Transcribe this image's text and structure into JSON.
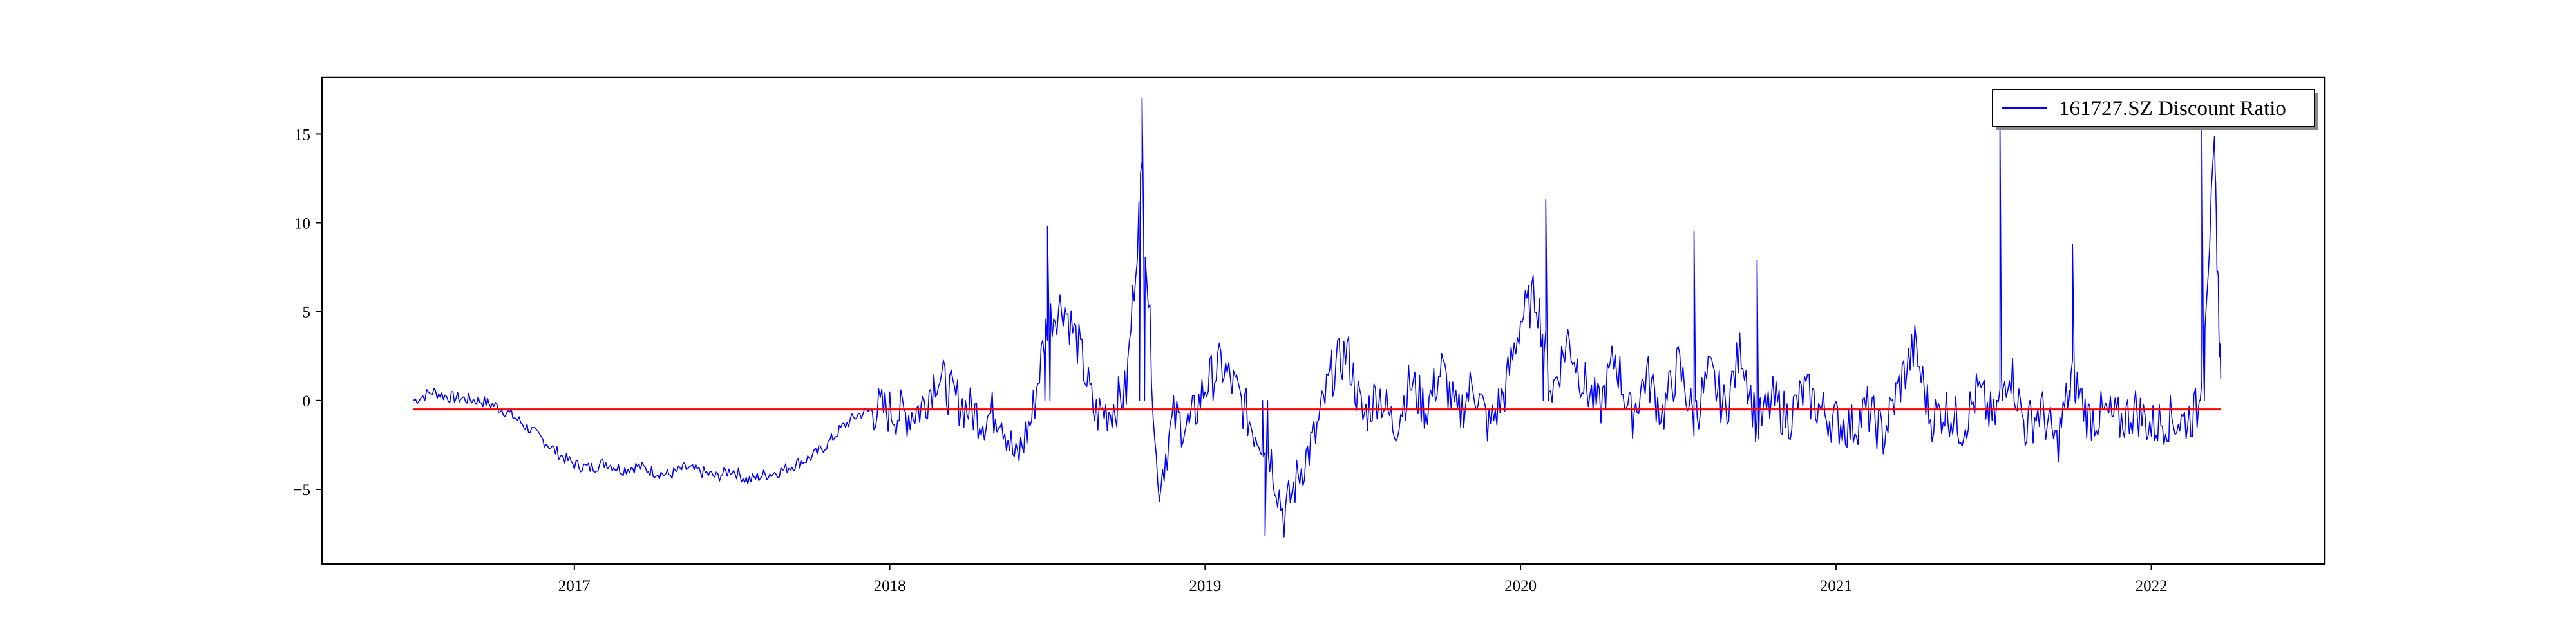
{
  "chart_data": {
    "type": "line",
    "title": "",
    "xlabel": "",
    "ylabel": "",
    "xlim": [
      2016.2,
      2022.55
    ],
    "ylim": [
      -9.2,
      18.2
    ],
    "grid": false,
    "legend_position": "top-right",
    "x_ticks": [
      {
        "value": 2017,
        "label": "2017"
      },
      {
        "value": 2018,
        "label": "2018"
      },
      {
        "value": 2019,
        "label": "2019"
      },
      {
        "value": 2020,
        "label": "2020"
      },
      {
        "value": 2021,
        "label": "2021"
      },
      {
        "value": 2022,
        "label": "2022"
      }
    ],
    "y_ticks": [
      {
        "value": -5,
        "label": "−5"
      },
      {
        "value": 0,
        "label": "0"
      },
      {
        "value": 5,
        "label": "5"
      },
      {
        "value": 10,
        "label": "10"
      },
      {
        "value": 15,
        "label": "15"
      }
    ],
    "series": [
      {
        "name": "161727.SZ Discount Ratio",
        "color": "#0000ff",
        "x": [
          2016.49,
          2016.55,
          2016.6,
          2016.65,
          2016.7,
          2016.75,
          2016.8,
          2016.85,
          2016.9,
          2016.95,
          2017.0,
          2017.05,
          2017.1,
          2017.15,
          2017.2,
          2017.25,
          2017.3,
          2017.35,
          2017.4,
          2017.45,
          2017.5,
          2017.55,
          2017.6,
          2017.65,
          2017.7,
          2017.75,
          2017.8,
          2017.85,
          2017.9,
          2017.95,
          2018.0,
          2018.05,
          2018.1,
          2018.15,
          2018.2,
          2018.25,
          2018.3,
          2018.35,
          2018.4,
          2018.45,
          2018.5,
          2018.55,
          2018.6,
          2018.65,
          2018.7,
          2018.75,
          2018.8,
          2018.85,
          2018.9,
          2018.95,
          2019.0,
          2019.05,
          2019.1,
          2019.15,
          2019.2,
          2019.25,
          2019.3,
          2019.35,
          2019.4,
          2019.45,
          2019.5,
          2019.55,
          2019.6,
          2019.65,
          2019.7,
          2019.75,
          2019.8,
          2019.85,
          2019.9,
          2019.95,
          2020.0,
          2020.05,
          2020.1,
          2020.15,
          2020.2,
          2020.25,
          2020.3,
          2020.35,
          2020.4,
          2020.45,
          2020.5,
          2020.55,
          2020.6,
          2020.65,
          2020.7,
          2020.75,
          2020.8,
          2020.85,
          2020.9,
          2020.95,
          2021.0,
          2021.05,
          2021.1,
          2021.15,
          2021.2,
          2021.25,
          2021.3,
          2021.35,
          2021.4,
          2021.45,
          2021.5,
          2021.55,
          2021.6,
          2021.65,
          2021.7,
          2021.75,
          2021.8,
          2021.85,
          2021.9,
          2021.95,
          2022.0,
          2022.05,
          2022.1,
          2022.15,
          2022.2,
          2022.22
        ],
        "y": [
          0.0,
          0.5,
          0.2,
          0.1,
          0.0,
          -0.3,
          -0.8,
          -1.5,
          -2.2,
          -3.0,
          -3.6,
          -3.8,
          -3.5,
          -3.9,
          -3.7,
          -4.0,
          -4.2,
          -3.8,
          -4.0,
          -4.3,
          -3.9,
          -4.5,
          -4.2,
          -4.0,
          -3.6,
          -3.2,
          -2.5,
          -1.5,
          -0.8,
          -0.5,
          -0.6,
          -0.8,
          -0.4,
          1.5,
          0.2,
          -0.5,
          -1.0,
          -0.5,
          -3.5,
          -1.0,
          4.5,
          5.5,
          3.0,
          -0.8,
          -0.5,
          0.5,
          13.0,
          -5.0,
          -1.0,
          -1.5,
          0.8,
          2.0,
          0.5,
          -1.5,
          -2.5,
          -6.5,
          -4.0,
          -2.0,
          1.5,
          2.8,
          -1.0,
          0.5,
          -1.5,
          1.0,
          -0.5,
          1.8,
          -1.0,
          1.0,
          -1.5,
          0.5,
          4.5,
          6.0,
          0.5,
          3.5,
          1.0,
          -0.5,
          2.5,
          -1.0,
          1.5,
          -0.8,
          2.0,
          -1.0,
          1.5,
          -0.5,
          3.0,
          -1.5,
          0.0,
          -1.0,
          0.5,
          -0.5,
          -1.2,
          -1.5,
          -0.5,
          -2.0,
          0.8,
          3.0,
          -1.0,
          -0.5,
          -1.5,
          0.5,
          -1.2,
          2.0,
          -1.5,
          -0.5,
          -2.5,
          1.5,
          -1.0,
          -0.8,
          -1.2,
          -0.5,
          -1.5,
          -1.0,
          -1.2,
          -0.5,
          13.5,
          1.2
        ],
        "peaks": [
          [
            2018.5,
            9.8
          ],
          [
            2018.8,
            17.0
          ],
          [
            2019.19,
            -7.6
          ],
          [
            2020.08,
            11.3
          ],
          [
            2020.55,
            9.5
          ],
          [
            2020.75,
            7.9
          ],
          [
            2021.52,
            16.0
          ],
          [
            2021.75,
            8.8
          ],
          [
            2022.16,
            15.5
          ]
        ]
      },
      {
        "name": "",
        "color": "#ff0000",
        "x": [
          2016.49,
          2022.22
        ],
        "y": [
          -0.5,
          -0.5
        ]
      }
    ]
  },
  "legend": {
    "entries": [
      "161727.SZ Discount Ratio"
    ]
  }
}
